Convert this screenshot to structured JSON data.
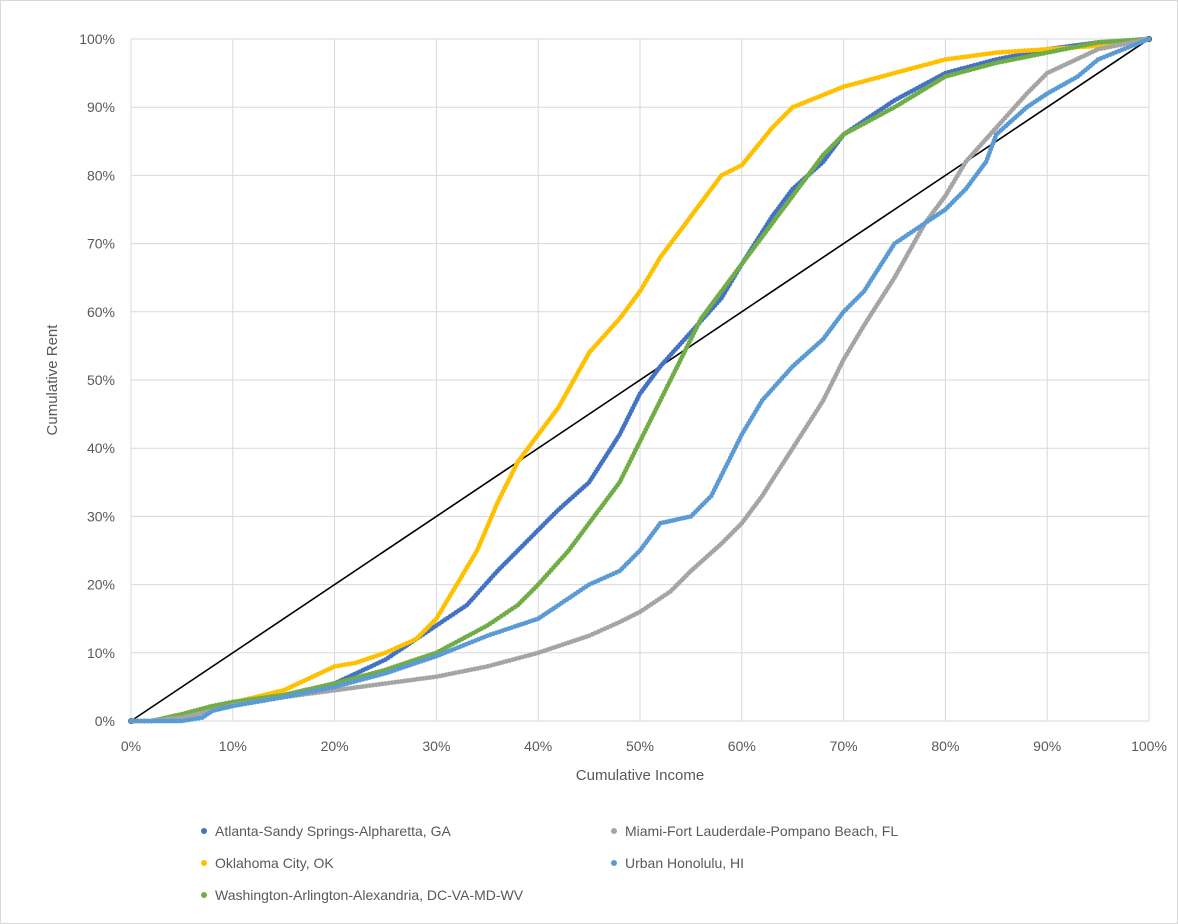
{
  "chart_data": {
    "type": "scatter",
    "title": "",
    "xlabel": "Cumulative Income",
    "ylabel": "Cumulative Rent",
    "xlim": [
      0,
      100
    ],
    "ylim": [
      0,
      100
    ],
    "x_ticks": [
      "0%",
      "10%",
      "20%",
      "30%",
      "40%",
      "50%",
      "60%",
      "70%",
      "80%",
      "90%",
      "100%"
    ],
    "y_ticks": [
      "0%",
      "10%",
      "20%",
      "30%",
      "40%",
      "50%",
      "60%",
      "70%",
      "80%",
      "90%",
      "100%"
    ],
    "grid": true,
    "legend_position": "bottom",
    "equality_line": {
      "x": [
        0,
        100
      ],
      "y": [
        0,
        100
      ],
      "color": "#000000"
    },
    "series": [
      {
        "name": "Atlanta-Sandy Springs-Alpharetta, GA",
        "color": "#4472C4",
        "x": [
          0,
          2,
          5,
          8,
          10,
          15,
          20,
          25,
          30,
          33,
          36,
          38,
          40,
          42,
          45,
          48,
          50,
          52,
          55,
          58,
          60,
          63,
          65,
          68,
          70,
          75,
          80,
          85,
          90,
          95,
          100
        ],
        "y": [
          0,
          0,
          0.7,
          1.8,
          2.5,
          3.8,
          5.5,
          9,
          14,
          17,
          22,
          25,
          28,
          31,
          35,
          42,
          48,
          52,
          57,
          62,
          67,
          74,
          78,
          82,
          86,
          91,
          95,
          97,
          98.5,
          99.5,
          100
        ]
      },
      {
        "name": "Oklahoma City, OK",
        "color": "#FFC000",
        "x": [
          0,
          2,
          5,
          8,
          10,
          15,
          20,
          22,
          25,
          28,
          30,
          32,
          34,
          36,
          38,
          40,
          42,
          45,
          48,
          50,
          52,
          55,
          58,
          60,
          63,
          65,
          70,
          75,
          80,
          85,
          90,
          95,
          100
        ],
        "y": [
          0,
          0,
          0.8,
          2,
          2.7,
          4.5,
          8,
          8.5,
          10,
          12,
          15,
          20,
          25,
          32,
          38,
          42,
          46,
          54,
          59,
          63,
          68,
          74,
          80,
          81.5,
          87,
          90,
          93,
          95,
          97,
          98,
          98.5,
          99,
          100
        ]
      },
      {
        "name": "Washington-Arlington-Alexandria, DC-VA-MD-WV",
        "color": "#70AD47",
        "x": [
          0,
          2,
          5,
          8,
          10,
          15,
          20,
          25,
          30,
          35,
          38,
          40,
          43,
          45,
          48,
          50,
          52,
          54,
          56,
          58,
          60,
          62,
          65,
          68,
          70,
          75,
          80,
          85,
          90,
          95,
          100
        ],
        "y": [
          0,
          0,
          1,
          2.2,
          2.8,
          3.8,
          5.5,
          7.5,
          10,
          14,
          17,
          20,
          25,
          29,
          35,
          41,
          47,
          53,
          59,
          63,
          67,
          71,
          77,
          83,
          86,
          90,
          94.5,
          96.5,
          98,
          99.5,
          100
        ]
      },
      {
        "name": "Miami-Fort Lauderdale-Pompano Beach, FL",
        "color": "#A5A5A5",
        "x": [
          0,
          2,
          5,
          8,
          10,
          15,
          20,
          25,
          30,
          35,
          40,
          45,
          48,
          50,
          53,
          55,
          58,
          60,
          62,
          65,
          68,
          70,
          72,
          75,
          78,
          80,
          82,
          85,
          88,
          90,
          95,
          100
        ],
        "y": [
          0,
          0,
          0.5,
          1.5,
          2.3,
          3.5,
          4.5,
          5.5,
          6.5,
          8,
          10,
          12.5,
          14.5,
          16,
          19,
          22,
          26,
          29,
          33,
          40,
          47,
          53,
          58,
          65,
          73,
          77,
          82,
          87,
          92,
          95,
          98.5,
          100
        ]
      },
      {
        "name": "Urban Honolulu, HI",
        "color": "#5B9BD5",
        "x": [
          0,
          2,
          5,
          7,
          8,
          10,
          15,
          20,
          25,
          30,
          35,
          38,
          40,
          42,
          45,
          48,
          50,
          52,
          55,
          57,
          58,
          60,
          62,
          65,
          68,
          70,
          72,
          75,
          78,
          80,
          82,
          84,
          85,
          88,
          90,
          93,
          95,
          100
        ],
        "y": [
          0,
          0,
          0,
          0.5,
          1.5,
          2.2,
          3.5,
          5,
          7,
          9.5,
          12.5,
          14,
          15,
          17,
          20,
          22,
          25,
          29,
          30,
          33,
          36,
          42,
          47,
          52,
          56,
          60,
          63,
          70,
          73,
          75,
          78,
          82,
          86,
          90,
          92,
          94.5,
          97,
          100
        ]
      }
    ]
  }
}
